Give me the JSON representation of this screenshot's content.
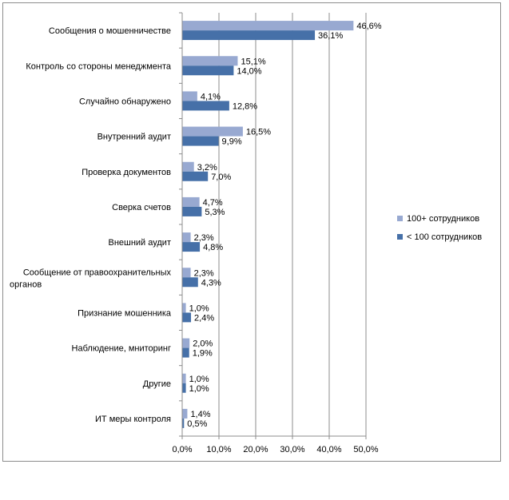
{
  "chart_data": {
    "type": "bar",
    "orientation": "horizontal",
    "categories": [
      "Сообщения о мошенничестве",
      "Контроль со стороны менеджмента",
      "Случайно обнаружено",
      "Внутренний аудит",
      "Проверка документов",
      "Сверка счетов",
      "Внешний аудит",
      "Сообщение от правоохранительных органов",
      "Признание мошенника",
      "Наблюдение, мниторинг",
      "Другие",
      "ИТ меры контроля"
    ],
    "series": [
      {
        "name": "100+ сотрудников",
        "color": "#98a9d1",
        "values": [
          46.6,
          15.1,
          4.1,
          16.5,
          3.2,
          4.7,
          2.3,
          2.3,
          1.0,
          2.0,
          1.0,
          1.4
        ],
        "labels": [
          "46,6%",
          "15,1%",
          "4,1%",
          "16,5%",
          "3,2%",
          "4,7%",
          "2,3%",
          "2,3%",
          "1,0%",
          "2,0%",
          "1,0%",
          "1,4%"
        ]
      },
      {
        "name": "< 100 сотрудников",
        "color": "#4670a8",
        "values": [
          36.1,
          14.0,
          12.8,
          9.9,
          7.0,
          5.3,
          4.8,
          4.3,
          2.4,
          1.9,
          1.0,
          0.5
        ],
        "labels": [
          "36,1%",
          "14,0%",
          "12,8%",
          "9,9%",
          "7,0%",
          "5,3%",
          "4,8%",
          "4,3%",
          "2,4%",
          "1,9%",
          "1,0%",
          "0,5%"
        ]
      }
    ],
    "xlim": [
      0,
      50
    ],
    "ticks": [
      0,
      10,
      20,
      30,
      40,
      50
    ],
    "tick_labels": [
      "0,0%",
      "10,0%",
      "20,0%",
      "30,0%",
      "40,0%",
      "50,0%"
    ],
    "grid": true,
    "legend": "right"
  }
}
